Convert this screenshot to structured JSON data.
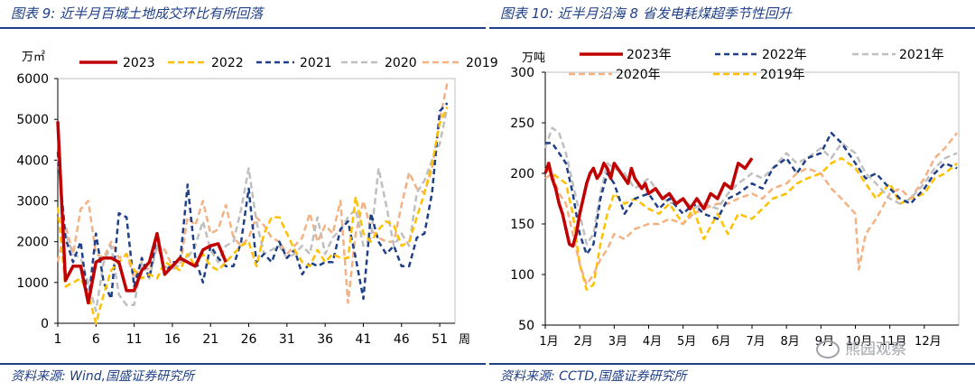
{
  "left": {
    "title": "图表 9:  近半月百城土地成交环比有所回落",
    "source": "资料来源:  Wind,国盛证券研究所",
    "chart_data": {
      "type": "line",
      "y_unit": "万㎡",
      "x_unit": "周",
      "ylim": [
        0,
        6000
      ],
      "yticks": [
        0,
        1000,
        2000,
        3000,
        4000,
        5000,
        6000
      ],
      "xlim": [
        1,
        53
      ],
      "xticks": [
        1,
        6,
        11,
        16,
        21,
        26,
        31,
        36,
        41,
        46,
        51
      ],
      "grid": false,
      "legend_position": "top",
      "series": [
        {
          "name": "2023",
          "color": "#c00000",
          "dash": "solid",
          "width": 3.5,
          "x": [
            1,
            2,
            3,
            4,
            5,
            6,
            7,
            8,
            9,
            10,
            11,
            12,
            13,
            14,
            15,
            16,
            17,
            18,
            19,
            20,
            21,
            22,
            23
          ],
          "y": [
            4950,
            1050,
            1400,
            1400,
            500,
            1500,
            1600,
            1600,
            1500,
            800,
            800,
            1300,
            1500,
            2200,
            1200,
            1400,
            1600,
            1500,
            1400,
            1800,
            1900,
            1950,
            1500
          ]
        },
        {
          "name": "2022",
          "color": "#ffc000",
          "dash": "7 4",
          "width": 2.5,
          "x": [
            1,
            2,
            3,
            4,
            5,
            6,
            7,
            8,
            9,
            10,
            11,
            12,
            13,
            14,
            15,
            16,
            17,
            18,
            19,
            20,
            21,
            22,
            23,
            24,
            25,
            26,
            27,
            28,
            29,
            30,
            31,
            32,
            33,
            34,
            35,
            36,
            37,
            38,
            39,
            40,
            41,
            42,
            43,
            44,
            45,
            46,
            47,
            48,
            49,
            50,
            51,
            52
          ],
          "y": [
            2850,
            900,
            1000,
            1100,
            700,
            0,
            700,
            1300,
            1500,
            1700,
            1300,
            1100,
            1200,
            1100,
            1500,
            1400,
            1300,
            1700,
            1400,
            1700,
            1400,
            1300,
            1500,
            1700,
            1900,
            2000,
            1400,
            2200,
            2600,
            2600,
            2200,
            1800,
            1500,
            1400,
            1800,
            1500,
            1700,
            1600,
            1600,
            3100,
            2200,
            2000,
            2300,
            2500,
            2400,
            1900,
            2000,
            2600,
            3200,
            3900,
            4900,
            5300
          ]
        },
        {
          "name": "2021",
          "color": "#1f3f86",
          "dash": "6 4",
          "width": 2.5,
          "x": [
            1,
            2,
            3,
            4,
            5,
            6,
            7,
            8,
            9,
            10,
            11,
            12,
            13,
            14,
            15,
            16,
            17,
            18,
            19,
            20,
            21,
            22,
            23,
            24,
            25,
            26,
            27,
            28,
            29,
            30,
            31,
            32,
            33,
            34,
            35,
            36,
            37,
            38,
            39,
            40,
            41,
            42,
            43,
            44,
            45,
            46,
            47,
            48,
            49,
            50,
            51,
            52
          ],
          "y": [
            4200,
            2100,
            1500,
            2000,
            500,
            2200,
            1000,
            600,
            2700,
            2600,
            900,
            1600,
            1100,
            2200,
            1200,
            1500,
            1500,
            3400,
            1600,
            1000,
            1900,
            1600,
            1400,
            1400,
            2000,
            3300,
            1500,
            1700,
            1500,
            2000,
            1600,
            1800,
            1200,
            1500,
            1400,
            1500,
            1500,
            2300,
            2500,
            1600,
            600,
            2700,
            2000,
            1700,
            1900,
            1400,
            1400,
            2100,
            2200,
            3200,
            5200,
            5400
          ]
        },
        {
          "name": "2020",
          "color": "#bfbfbf",
          "dash": "7 4",
          "width": 2.5,
          "x": [
            1,
            2,
            3,
            4,
            5,
            6,
            7,
            8,
            9,
            10,
            11,
            12,
            13,
            14,
            15,
            16,
            17,
            18,
            19,
            20,
            21,
            22,
            23,
            24,
            25,
            26,
            27,
            28,
            29,
            30,
            31,
            32,
            33,
            34,
            35,
            36,
            37,
            38,
            39,
            40,
            41,
            42,
            43,
            44,
            45,
            46,
            47,
            48,
            49,
            50,
            51,
            52
          ],
          "y": [
            4100,
            2200,
            1700,
            1600,
            1000,
            300,
            1500,
            1900,
            700,
            450,
            450,
            1500,
            1100,
            1900,
            1400,
            1300,
            1500,
            1600,
            1900,
            2500,
            1800,
            1500,
            1900,
            2000,
            2800,
            3800,
            2500,
            1700,
            1800,
            1900,
            1600,
            1700,
            1900,
            1700,
            2600,
            1700,
            2100,
            2300,
            2600,
            2800,
            1900,
            2100,
            3800,
            2900,
            1900,
            2200,
            1900,
            3200,
            3500,
            4000,
            4400,
            5300
          ]
        },
        {
          "name": "2019",
          "color": "#f4b183",
          "dash": "7 4",
          "width": 2.5,
          "x": [
            1,
            2,
            3,
            4,
            5,
            6,
            7,
            8,
            9,
            10,
            11,
            12,
            13,
            14,
            15,
            16,
            17,
            18,
            19,
            20,
            21,
            22,
            23,
            24,
            25,
            26,
            27,
            28,
            29,
            30,
            31,
            32,
            33,
            34,
            35,
            36,
            37,
            38,
            39,
            40,
            41,
            42,
            43,
            44,
            45,
            46,
            47,
            48,
            49,
            50,
            51,
            52
          ],
          "y": [
            1500,
            2400,
            1700,
            2800,
            3000,
            1700,
            1600,
            2000,
            1600,
            1700,
            1100,
            1500,
            1300,
            1900,
            1800,
            1400,
            1400,
            2600,
            2400,
            3000,
            2200,
            2300,
            2900,
            2100,
            1900,
            2100,
            2600,
            2400,
            2100,
            2000,
            1700,
            1900,
            2100,
            2700,
            2000,
            2400,
            2200,
            3000,
            500,
            2200,
            3000,
            2300,
            2100,
            2000,
            2000,
            2900,
            3700,
            3300,
            3200,
            3800,
            5000,
            5900
          ]
        }
      ]
    }
  },
  "right": {
    "title": "图表 10:  近半月沿海 8 省发电耗煤超季节性回升",
    "source": "资料来源:  CCTD,国盛证券研究所",
    "watermark": "熊园观察",
    "chart_data": {
      "type": "line",
      "y_unit": "万吨",
      "ylim": [
        50,
        300
      ],
      "yticks": [
        50,
        100,
        150,
        200,
        250,
        300
      ],
      "categories": [
        "1月",
        "2月",
        "3月",
        "4月",
        "5月",
        "6月",
        "7月",
        "8月",
        "9月",
        "10月",
        "11月",
        "12月"
      ],
      "grid": false,
      "legend_position": "top",
      "series": [
        {
          "name": "2023年",
          "color": "#c00000",
          "dash": "solid",
          "width": 3.5,
          "x": [
            0,
            0.1,
            0.2,
            0.3,
            0.4,
            0.5,
            0.6,
            0.7,
            0.8,
            0.9,
            1.0,
            1.1,
            1.2,
            1.3,
            1.4,
            1.5,
            1.6,
            1.7,
            1.8,
            1.9,
            2.0,
            2.1,
            2.2,
            2.3,
            2.4,
            2.5,
            2.6,
            2.7,
            2.8,
            2.9,
            3.0,
            3.2,
            3.4,
            3.6,
            3.8,
            4.0,
            4.2,
            4.4,
            4.6,
            4.8,
            5.0,
            5.2,
            5.4,
            5.6,
            5.8,
            6.0
          ],
          "y": [
            200,
            210,
            195,
            185,
            170,
            160,
            145,
            130,
            128,
            140,
            160,
            175,
            190,
            200,
            205,
            195,
            200,
            210,
            205,
            195,
            210,
            205,
            200,
            195,
            190,
            205,
            195,
            190,
            185,
            190,
            180,
            185,
            175,
            180,
            170,
            175,
            165,
            175,
            165,
            180,
            175,
            190,
            185,
            210,
            205,
            215
          ]
        },
        {
          "name": "2022年",
          "color": "#1f3f86",
          "dash": "6 4",
          "width": 2.5,
          "x": [
            0,
            0.2,
            0.4,
            0.6,
            0.8,
            1.0,
            1.2,
            1.4,
            1.6,
            1.8,
            2.0,
            2.3,
            2.6,
            3.0,
            3.3,
            3.6,
            4.0,
            4.3,
            4.6,
            5.0,
            5.3,
            5.6,
            6.0,
            6.3,
            6.6,
            7.0,
            7.3,
            7.6,
            8.0,
            8.3,
            8.6,
            9.0,
            9.3,
            9.6,
            10.0,
            10.3,
            10.6,
            11.0,
            11.3,
            11.6,
            11.95
          ],
          "y": [
            230,
            230,
            220,
            210,
            180,
            140,
            120,
            130,
            175,
            200,
            190,
            160,
            175,
            180,
            165,
            175,
            160,
            170,
            160,
            155,
            175,
            180,
            190,
            185,
            205,
            215,
            200,
            215,
            220,
            240,
            230,
            210,
            195,
            200,
            185,
            175,
            170,
            185,
            200,
            210,
            205
          ]
        },
        {
          "name": "2021年",
          "color": "#bfbfbf",
          "dash": "7 4",
          "width": 2.5,
          "x": [
            0,
            0.2,
            0.4,
            0.6,
            0.8,
            1.0,
            1.2,
            1.4,
            1.6,
            1.8,
            2.0,
            2.3,
            2.6,
            3.0,
            3.3,
            3.6,
            4.0,
            4.3,
            4.6,
            5.0,
            5.3,
            5.6,
            6.0,
            6.3,
            6.6,
            7.0,
            7.3,
            7.6,
            8.0,
            8.3,
            8.6,
            9.0,
            9.3,
            9.6,
            10.0,
            10.3,
            10.6,
            11.0,
            11.3,
            11.6,
            11.95
          ],
          "y": [
            225,
            245,
            240,
            220,
            190,
            160,
            130,
            140,
            180,
            210,
            205,
            200,
            185,
            195,
            180,
            170,
            175,
            165,
            170,
            165,
            180,
            190,
            200,
            195,
            205,
            220,
            210,
            215,
            225,
            215,
            230,
            220,
            200,
            190,
            175,
            170,
            175,
            190,
            205,
            215,
            220
          ]
        },
        {
          "name": "2020年",
          "color": "#f4b183",
          "dash": "7 4",
          "width": 2.5,
          "x": [
            0,
            0.2,
            0.4,
            0.6,
            0.8,
            1.0,
            1.2,
            1.4,
            1.6,
            1.8,
            2.0,
            2.3,
            2.6,
            3.0,
            3.3,
            3.6,
            4.0,
            4.3,
            4.6,
            5.0,
            5.3,
            5.6,
            6.0,
            6.3,
            6.6,
            7.0,
            7.3,
            7.6,
            8.0,
            8.3,
            8.6,
            9.0,
            9.1,
            9.3,
            9.6,
            10.0,
            10.3,
            10.6,
            11.0,
            11.3,
            11.6,
            11.95
          ],
          "y": [
            195,
            200,
            180,
            170,
            140,
            110,
            90,
            100,
            115,
            125,
            140,
            135,
            145,
            150,
            150,
            155,
            150,
            160,
            165,
            170,
            170,
            175,
            180,
            175,
            185,
            190,
            200,
            205,
            200,
            185,
            175,
            160,
            105,
            140,
            155,
            180,
            185,
            175,
            195,
            215,
            225,
            240
          ]
        },
        {
          "name": "2019年",
          "color": "#ffc000",
          "dash": "7 4",
          "width": 2.5,
          "x": [
            0,
            0.2,
            0.4,
            0.6,
            0.8,
            1.0,
            1.2,
            1.4,
            1.6,
            1.8,
            2.0,
            2.3,
            2.6,
            3.0,
            3.3,
            3.6,
            4.0,
            4.3,
            4.6,
            5.0,
            5.3,
            5.6,
            6.0,
            6.3,
            6.6,
            7.0,
            7.3,
            7.6,
            8.0,
            8.3,
            8.6,
            9.0,
            9.3,
            9.6,
            10.0,
            10.3,
            10.6,
            11.0,
            11.3,
            11.6,
            11.95
          ],
          "y": [
            205,
            200,
            195,
            190,
            160,
            110,
            85,
            90,
            130,
            160,
            180,
            170,
            175,
            165,
            160,
            170,
            150,
            165,
            135,
            160,
            140,
            160,
            155,
            165,
            175,
            180,
            190,
            195,
            200,
            210,
            215,
            205,
            190,
            175,
            190,
            170,
            175,
            180,
            195,
            200,
            210
          ]
        }
      ]
    }
  }
}
